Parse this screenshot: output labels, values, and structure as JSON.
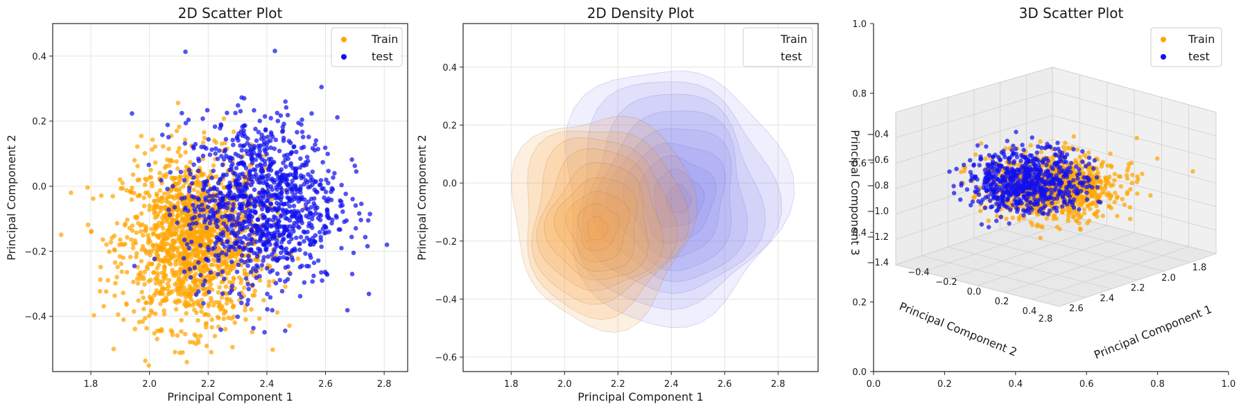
{
  "chart_data": [
    {
      "type": "scatter",
      "title": "2D Scatter Plot",
      "xlabel": "Principal Component 1",
      "ylabel": "Principal Component 2",
      "xlim": [
        1.67,
        2.88
      ],
      "ylim": [
        -0.57,
        0.5
      ],
      "xticks": [
        1.8,
        2.0,
        2.2,
        2.4,
        2.6,
        2.8
      ],
      "xtick_labels": [
        "1.8",
        "2.0",
        "2.2",
        "2.4",
        "2.6",
        "2.8"
      ],
      "yticks": [
        -0.4,
        -0.2,
        0.0,
        0.2,
        0.4
      ],
      "ytick_labels": [
        "−0.4",
        "−0.2",
        "0.0",
        "0.2",
        "0.4"
      ],
      "grid": true,
      "legend": "top-right",
      "series": [
        {
          "name": "Train",
          "color": "#FFA500",
          "center": [
            2.15,
            -0.17
          ],
          "spread": [
            0.12,
            0.13
          ],
          "count": 1500
        },
        {
          "name": "test",
          "color": "#1010EE",
          "center": [
            2.38,
            -0.05
          ],
          "spread": [
            0.13,
            0.13
          ],
          "count": 1100
        }
      ]
    },
    {
      "type": "density",
      "title": "2D Density Plot",
      "xlabel": "Principal Component 1",
      "ylabel": "Principal Component 2",
      "xlim": [
        1.62,
        2.95
      ],
      "ylim": [
        -0.65,
        0.55
      ],
      "xticks": [
        1.8,
        2.0,
        2.2,
        2.4,
        2.6,
        2.8
      ],
      "xtick_labels": [
        "1.8",
        "2.0",
        "2.2",
        "2.4",
        "2.6",
        "2.8"
      ],
      "yticks": [
        -0.6,
        -0.4,
        -0.2,
        0.0,
        0.2,
        0.4
      ],
      "ytick_labels": [
        "−0.6",
        "−0.4",
        "−0.2",
        "0.0",
        "0.2",
        "0.4"
      ],
      "grid": true,
      "legend": "top-right",
      "series": [
        {
          "name": "Train",
          "color": "#F7A040",
          "center": [
            2.14,
            -0.12
          ],
          "spread": [
            0.13,
            0.14
          ],
          "levels": 9
        },
        {
          "name": "test",
          "color": "#7070F0",
          "center": [
            2.4,
            -0.04
          ],
          "spread": [
            0.16,
            0.17
          ],
          "levels": 9
        }
      ]
    },
    {
      "type": "scatter3d",
      "title": "3D Scatter Plot",
      "xlabel": "Principal Component 1",
      "ylabel": "Principal Component 2",
      "zlabel": "Principal Component 3",
      "xticks_labels": [
        "1.8",
        "2.0",
        "2.2",
        "2.4",
        "2.6",
        "2.8"
      ],
      "yticks_labels": [
        "−0.4",
        "−0.2",
        "0.0",
        "0.2",
        "0.4"
      ],
      "zticks_labels": [
        "−0.4",
        "−0.6",
        "−0.8",
        "−1.0",
        "−1.2",
        "−1.4"
      ],
      "frame_x_ticks": [
        "0.0",
        "0.2",
        "0.4",
        "0.6",
        "0.8",
        "1.0"
      ],
      "frame_y_ticks": [
        "0.0",
        "0.2",
        "0.4",
        "0.6",
        "0.8",
        "1.0"
      ],
      "legend": "top-right",
      "series": [
        {
          "name": "Train",
          "color": "#FFA500",
          "count": 1000
        },
        {
          "name": "test",
          "color": "#1010EE",
          "count": 700
        }
      ]
    }
  ]
}
